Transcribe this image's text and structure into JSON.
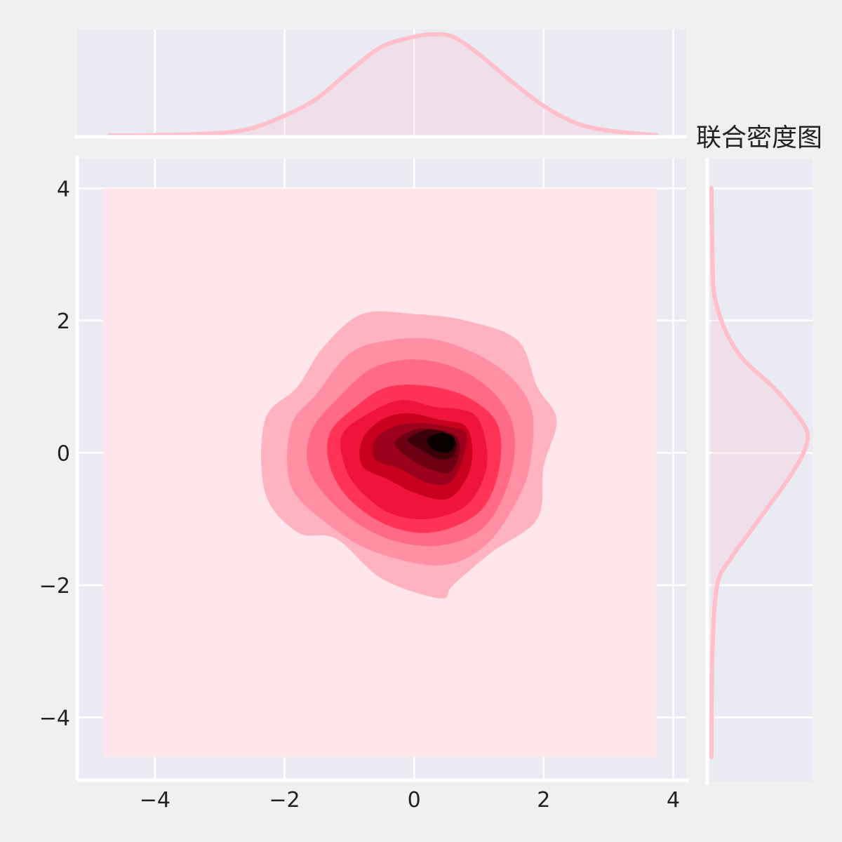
{
  "chart_data": {
    "type": "contour",
    "title": "联合密度图",
    "xlabel": "",
    "ylabel": "",
    "xlim": [
      -5.2,
      4.2
    ],
    "ylim": [
      -4.95,
      4.45
    ],
    "xticks": [
      -4,
      -2,
      0,
      2,
      4
    ],
    "yticks": [
      -4,
      -2,
      0,
      2,
      4
    ],
    "xtick_labels": [
      "−4",
      "−2",
      "0",
      "2",
      "4"
    ],
    "ytick_labels": [
      "−4",
      "−2",
      "0",
      "2",
      "4"
    ],
    "grid": true,
    "fill_extent": {
      "x": [
        -4.8,
        3.75
      ],
      "y": [
        -4.6,
        4.0
      ]
    },
    "density_peak": [
      0.4,
      0.15
    ],
    "levels": [
      {
        "level": 1,
        "color": "#ffb3c1",
        "points": [
          [
            -2.3,
            0.5
          ],
          [
            -1.8,
            1.0
          ],
          [
            -1.4,
            1.6
          ],
          [
            -0.8,
            2.1
          ],
          [
            0.0,
            2.1
          ],
          [
            0.8,
            2.0
          ],
          [
            1.6,
            1.7
          ],
          [
            1.9,
            1.0
          ],
          [
            2.2,
            0.5
          ],
          [
            2.0,
            -0.2
          ],
          [
            1.9,
            -1.0
          ],
          [
            1.2,
            -1.5
          ],
          [
            0.6,
            -2.0
          ],
          [
            0.4,
            -2.2
          ],
          [
            -0.5,
            -1.9
          ],
          [
            -1.2,
            -1.3
          ],
          [
            -1.8,
            -1.2
          ],
          [
            -2.3,
            -0.6
          ]
        ]
      },
      {
        "level": 2,
        "color": "#ff8fa3",
        "points": [
          [
            -1.9,
            0.4
          ],
          [
            -1.5,
            0.9
          ],
          [
            -1.0,
            1.5
          ],
          [
            -0.4,
            1.7
          ],
          [
            0.4,
            1.7
          ],
          [
            1.3,
            1.3
          ],
          [
            1.8,
            0.7
          ],
          [
            1.8,
            -0.1
          ],
          [
            1.6,
            -0.7
          ],
          [
            1.1,
            -1.4
          ],
          [
            0.4,
            -1.7
          ],
          [
            -0.6,
            -1.5
          ],
          [
            -1.3,
            -1.1
          ],
          [
            -1.9,
            -0.5
          ]
        ]
      },
      {
        "level": 3,
        "color": "#ff6b85",
        "points": [
          [
            -1.6,
            0.3
          ],
          [
            -1.2,
            0.8
          ],
          [
            -0.6,
            1.3
          ],
          [
            0.2,
            1.4
          ],
          [
            1.0,
            1.1
          ],
          [
            1.5,
            0.5
          ],
          [
            1.5,
            -0.3
          ],
          [
            1.1,
            -1.1
          ],
          [
            0.4,
            -1.4
          ],
          [
            -0.4,
            -1.3
          ],
          [
            -1.1,
            -0.9
          ],
          [
            -1.6,
            -0.3
          ]
        ]
      },
      {
        "level": 4,
        "color": "#ff3355",
        "points": [
          [
            -1.3,
            0.3
          ],
          [
            -0.9,
            0.7
          ],
          [
            -0.4,
            1.0
          ],
          [
            0.3,
            1.0
          ],
          [
            0.9,
            0.8
          ],
          [
            1.3,
            0.4
          ],
          [
            1.3,
            -0.3
          ],
          [
            1.0,
            -0.9
          ],
          [
            0.3,
            -1.2
          ],
          [
            -0.4,
            -1.1
          ],
          [
            -1.0,
            -0.7
          ],
          [
            -1.3,
            -0.2
          ]
        ]
      },
      {
        "level": 5,
        "color": "#f0143a",
        "points": [
          [
            -1.1,
            0.3
          ],
          [
            -0.7,
            0.6
          ],
          [
            -0.2,
            0.8
          ],
          [
            0.3,
            0.7
          ],
          [
            0.9,
            0.6
          ],
          [
            1.1,
            0.2
          ],
          [
            1.1,
            -0.3
          ],
          [
            0.8,
            -0.8
          ],
          [
            0.2,
            -1.0
          ],
          [
            -0.4,
            -0.9
          ],
          [
            -0.9,
            -0.5
          ],
          [
            -1.1,
            -0.1
          ]
        ]
      },
      {
        "level": 6,
        "color": "#c8001e",
        "points": [
          [
            -0.8,
            0.2
          ],
          [
            -0.5,
            0.5
          ],
          [
            -0.1,
            0.6
          ],
          [
            0.4,
            0.5
          ],
          [
            0.8,
            0.4
          ],
          [
            0.9,
            0.0
          ],
          [
            0.8,
            -0.4
          ],
          [
            0.5,
            -0.7
          ],
          [
            0.0,
            -0.6
          ],
          [
            -0.4,
            -0.4
          ],
          [
            -0.8,
            -0.2
          ]
        ]
      },
      {
        "level": 7,
        "color": "#9c001a",
        "points": [
          [
            -0.6,
            0.2
          ],
          [
            -0.3,
            0.4
          ],
          [
            0.1,
            0.45
          ],
          [
            0.5,
            0.4
          ],
          [
            0.8,
            0.3
          ],
          [
            0.75,
            -0.1
          ],
          [
            0.55,
            -0.45
          ],
          [
            0.2,
            -0.45
          ],
          [
            -0.2,
            -0.25
          ],
          [
            -0.6,
            -0.1
          ]
        ]
      },
      {
        "level": 8,
        "color": "#6d0012",
        "points": [
          [
            -0.3,
            0.15
          ],
          [
            0.0,
            0.35
          ],
          [
            0.35,
            0.35
          ],
          [
            0.65,
            0.25
          ],
          [
            0.7,
            0.0
          ],
          [
            0.55,
            -0.3
          ],
          [
            0.25,
            -0.25
          ],
          [
            -0.05,
            -0.1
          ]
        ]
      },
      {
        "level": 9,
        "color": "#3d0008",
        "points": [
          [
            -0.1,
            0.2
          ],
          [
            0.2,
            0.35
          ],
          [
            0.5,
            0.3
          ],
          [
            0.65,
            0.15
          ],
          [
            0.6,
            -0.05
          ],
          [
            0.4,
            -0.1
          ],
          [
            0.1,
            0.05
          ]
        ]
      },
      {
        "level": 10,
        "color": "#0a0000",
        "points": [
          [
            0.2,
            0.2
          ],
          [
            0.4,
            0.3
          ],
          [
            0.6,
            0.25
          ],
          [
            0.62,
            0.1
          ],
          [
            0.5,
            0.0
          ],
          [
            0.3,
            0.05
          ]
        ]
      }
    ],
    "marginal_x": {
      "color": "#ffc0cb",
      "points": [
        [
          -4.7,
          0.0
        ],
        [
          -4.0,
          0.001
        ],
        [
          -3.0,
          0.01
        ],
        [
          -2.5,
          0.03
        ],
        [
          -2.0,
          0.08
        ],
        [
          -1.5,
          0.15
        ],
        [
          -1.0,
          0.26
        ],
        [
          -0.5,
          0.36
        ],
        [
          0.0,
          0.4
        ],
        [
          0.3,
          0.41
        ],
        [
          0.6,
          0.4
        ],
        [
          1.0,
          0.33
        ],
        [
          1.5,
          0.22
        ],
        [
          2.0,
          0.12
        ],
        [
          2.5,
          0.05
        ],
        [
          3.0,
          0.02
        ],
        [
          3.75,
          0.0
        ]
      ]
    },
    "marginal_y": {
      "color": "#ffc0cb",
      "points": [
        [
          4.0,
          0.0
        ],
        [
          3.0,
          0.005
        ],
        [
          2.5,
          0.01
        ],
        [
          2.2,
          0.03
        ],
        [
          1.8,
          0.08
        ],
        [
          1.4,
          0.17
        ],
        [
          1.0,
          0.32
        ],
        [
          0.6,
          0.44
        ],
        [
          0.3,
          0.5
        ],
        [
          0.0,
          0.48
        ],
        [
          -0.4,
          0.4
        ],
        [
          -0.8,
          0.3
        ],
        [
          -1.2,
          0.2
        ],
        [
          -1.6,
          0.1
        ],
        [
          -2.0,
          0.03
        ],
        [
          -3.0,
          0.005
        ],
        [
          -4.6,
          0.0
        ]
      ]
    },
    "colors": {
      "figure_bg": "#f0f0f0",
      "axes_bg": "#eaeaf2",
      "fill_base": "#ffe6ea",
      "grid": "#ffffff",
      "spine": "#ffffff",
      "text": "#222222"
    }
  }
}
